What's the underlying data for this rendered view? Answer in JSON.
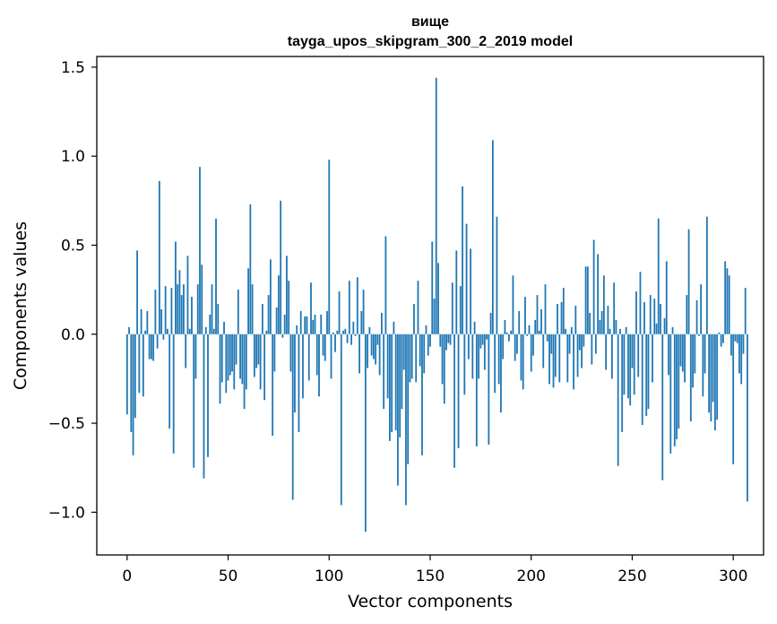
{
  "chart_data": {
    "type": "bar",
    "title_line1": "вище",
    "title_line2": "tayga_upos_skipgram_300_2_2019 model",
    "xlabel": "Vector components",
    "ylabel": "Components values",
    "xlim": [
      -15,
      315
    ],
    "ylim": [
      -1.24,
      1.56
    ],
    "xticks": [
      0,
      50,
      100,
      150,
      200,
      250,
      300
    ],
    "xtick_labels": [
      "0",
      "50",
      "100",
      "150",
      "200",
      "250",
      "300"
    ],
    "yticks": [
      -1.0,
      -0.5,
      0.0,
      0.5,
      1.0,
      1.5
    ],
    "ytick_labels": [
      "−1.0",
      "−0.5",
      "0.0",
      "0.5",
      "1.0",
      "1.5"
    ],
    "bar_color": "#1f77b4",
    "values": [
      -0.45,
      0.04,
      -0.55,
      -0.68,
      -0.47,
      0.47,
      -0.33,
      0.14,
      -0.35,
      0.02,
      0.13,
      -0.14,
      -0.14,
      -0.15,
      0.25,
      -0.08,
      0.86,
      0.14,
      -0.03,
      0.27,
      0.03,
      -0.53,
      0.26,
      -0.67,
      0.52,
      0.28,
      0.36,
      0.22,
      0.28,
      -0.19,
      0.44,
      0.03,
      0.21,
      -0.75,
      -0.25,
      0.28,
      0.94,
      0.39,
      -0.81,
      0.04,
      -0.69,
      0.11,
      0.28,
      0.03,
      0.65,
      0.17,
      -0.39,
      -0.27,
      0.07,
      -0.33,
      -0.26,
      -0.23,
      -0.21,
      -0.31,
      -0.17,
      0.25,
      -0.25,
      -0.28,
      -0.42,
      -0.31,
      0.37,
      0.73,
      0.28,
      -0.24,
      -0.19,
      -0.17,
      -0.31,
      0.17,
      -0.37,
      0.02,
      0.22,
      0.42,
      -0.57,
      -0.21,
      0.15,
      0.33,
      0.75,
      -0.02,
      0.11,
      0.44,
      0.3,
      -0.21,
      -0.93,
      -0.44,
      0.05,
      -0.55,
      0.13,
      -0.36,
      0.1,
      0.1,
      -0.26,
      0.29,
      0.08,
      0.11,
      -0.23,
      -0.35,
      0.11,
      -0.12,
      -0.15,
      0.13,
      0.98,
      -0.25,
      0.01,
      -0.1,
      0.02,
      0.24,
      -0.96,
      0.02,
      0.03,
      -0.05,
      0.3,
      -0.06,
      0.07,
      -0.01,
      0.32,
      -0.22,
      0.13,
      0.25,
      -1.11,
      -0.19,
      0.04,
      -0.12,
      -0.14,
      -0.17,
      -0.06,
      -0.23,
      0.12,
      -0.42,
      0.55,
      -0.36,
      -0.6,
      -0.55,
      0.07,
      -0.54,
      -0.85,
      -0.58,
      -0.42,
      -0.2,
      -0.96,
      -0.73,
      -0.27,
      -0.25,
      0.17,
      -0.27,
      0.3,
      -0.18,
      -0.68,
      -0.22,
      0.05,
      -0.12,
      -0.07,
      0.52,
      0.2,
      1.44,
      0.4,
      -0.07,
      -0.28,
      -0.39,
      -0.09,
      -0.05,
      -0.06,
      0.29,
      -0.75,
      0.47,
      -0.64,
      0.27,
      0.83,
      -0.34,
      0.62,
      -0.14,
      0.48,
      -0.25,
      0.07,
      -0.63,
      -0.25,
      -0.08,
      -0.06,
      -0.2,
      -0.03,
      -0.62,
      0.12,
      1.09,
      -0.33,
      0.66,
      -0.28,
      -0.44,
      -0.14,
      0.08,
      0.01,
      -0.04,
      0.02,
      0.33,
      -0.15,
      -0.11,
      0.13,
      -0.26,
      -0.31,
      0.21,
      -0.01,
      0.05,
      -0.21,
      -0.12,
      0.08,
      0.22,
      0.02,
      0.14,
      -0.19,
      0.28,
      -0.04,
      -0.28,
      -0.11,
      -0.3,
      -0.24,
      0.17,
      -0.27,
      0.18,
      0.26,
      0.03,
      -0.27,
      -0.11,
      0.04,
      -0.31,
      0.16,
      -0.24,
      -0.09,
      -0.19,
      -0.07,
      0.38,
      0.38,
      0.12,
      -0.17,
      0.53,
      -0.11,
      0.45,
      0.08,
      0.13,
      0.33,
      -0.2,
      0.16,
      0.03,
      -0.25,
      0.29,
      0.08,
      -0.74,
      0.03,
      -0.55,
      -0.34,
      0.04,
      -0.36,
      -0.4,
      -0.19,
      -0.34,
      0.24,
      -0.24,
      0.35,
      -0.51,
      0.18,
      -0.46,
      -0.42,
      0.22,
      -0.27,
      0.2,
      0.06,
      0.65,
      0.17,
      -0.82,
      0.09,
      0.41,
      -0.23,
      -0.67,
      0.04,
      -0.63,
      -0.59,
      -0.53,
      -0.18,
      -0.21,
      -0.27,
      0.22,
      0.59,
      -0.49,
      -0.3,
      -0.22,
      0.19,
      -0.01,
      0.28,
      -0.35,
      -0.22,
      0.66,
      -0.44,
      -0.49,
      -0.38,
      -0.54,
      -0.48,
      0.01,
      -0.07,
      -0.05,
      0.41,
      0.37,
      0.33,
      -0.12,
      -0.73,
      -0.04,
      -0.05,
      -0.22,
      -0.28,
      -0.11,
      0.26,
      -0.94
    ]
  }
}
